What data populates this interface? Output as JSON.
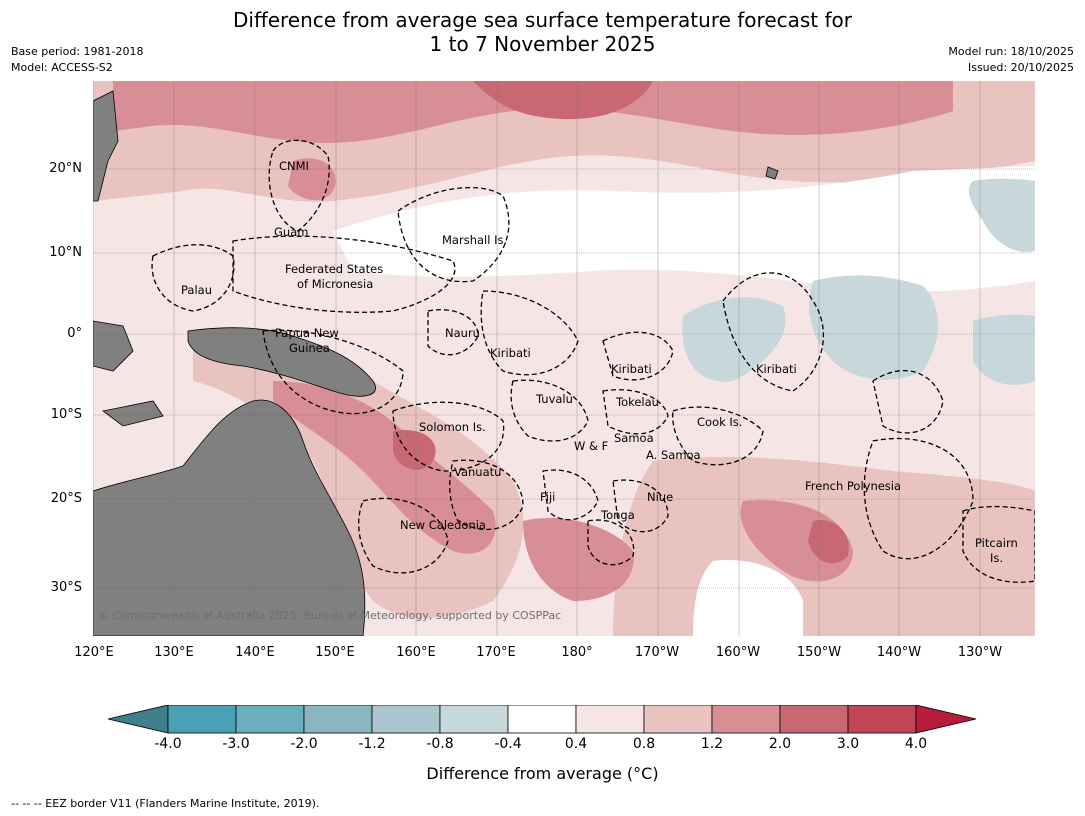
{
  "title_line1": "Difference from average sea surface temperature forecast for",
  "title_line2": "1 to 7 November 2025",
  "meta_left": {
    "base_period": "Base period: 1981-2018",
    "model": "Model: ACCESS-S2"
  },
  "meta_right": {
    "model_run": "Model run: 18/10/2025",
    "issued": "Issued: 20/10/2025"
  },
  "latitudes": [
    "20°N",
    "10°N",
    "0°",
    "10°S",
    "20°S",
    "30°S"
  ],
  "longitudes": [
    "120°E",
    "130°E",
    "140°E",
    "150°E",
    "160°E",
    "170°E",
    "180°",
    "170°W",
    "160°W",
    "150°W",
    "140°W",
    "130°W"
  ],
  "regions": [
    {
      "name": "CNMI"
    },
    {
      "name": "Guam"
    },
    {
      "name": "Marshall Is."
    },
    {
      "name": "Federated States"
    },
    {
      "name": "of Micronesia"
    },
    {
      "name": "Palau"
    },
    {
      "name": "Nauru"
    },
    {
      "name": "Papua New"
    },
    {
      "name": "Guinea"
    },
    {
      "name": "Kiribati"
    },
    {
      "name": "Kiribati"
    },
    {
      "name": "Kiribati"
    },
    {
      "name": "Tuvalu"
    },
    {
      "name": "Tokelau"
    },
    {
      "name": "Cook Is."
    },
    {
      "name": "Solomon Is."
    },
    {
      "name": "Samoa"
    },
    {
      "name": "W & F"
    },
    {
      "name": "A. Samoa"
    },
    {
      "name": "Vanuatu"
    },
    {
      "name": "Fiji"
    },
    {
      "name": "Niue"
    },
    {
      "name": "Tonga"
    },
    {
      "name": "French Polynesia"
    },
    {
      "name": "New Caledonia"
    },
    {
      "name": "Pitcairn"
    },
    {
      "name": "Is."
    }
  ],
  "copyright": "© Commonwealth of Australia 2025, Bureau of Meteorology, supported by COSPPac",
  "colorbar": {
    "ticks": [
      "-4.0",
      "-3.0",
      "-2.0",
      "-1.2",
      "-0.8",
      "-0.4",
      "0.4",
      "0.8",
      "1.2",
      "2.0",
      "3.0",
      "4.0"
    ],
    "colors": [
      "#3f7f8c",
      "#4aa0b5",
      "#6aafbe",
      "#8ab6c2",
      "#a8c6cc",
      "#c8d7dc",
      "#ffffff",
      "#f5e6e5",
      "#e8c3c0",
      "#d88e97",
      "#c86872",
      "#c04655",
      "#b71c3a"
    ],
    "title": "Difference from average (°C)"
  },
  "footer": "--  --  -- EEZ border V11 (Flanders Marine Institute, 2019).",
  "map_colors": {
    "land": "#808080",
    "ocean_light": "#f5e6e5",
    "ocean_mid": "#e8c3c0",
    "ocean_warm": "#d88e97",
    "ocean_hot": "#c86872",
    "cool_light": "#c8d7dc",
    "neutral": "#ffffff"
  }
}
